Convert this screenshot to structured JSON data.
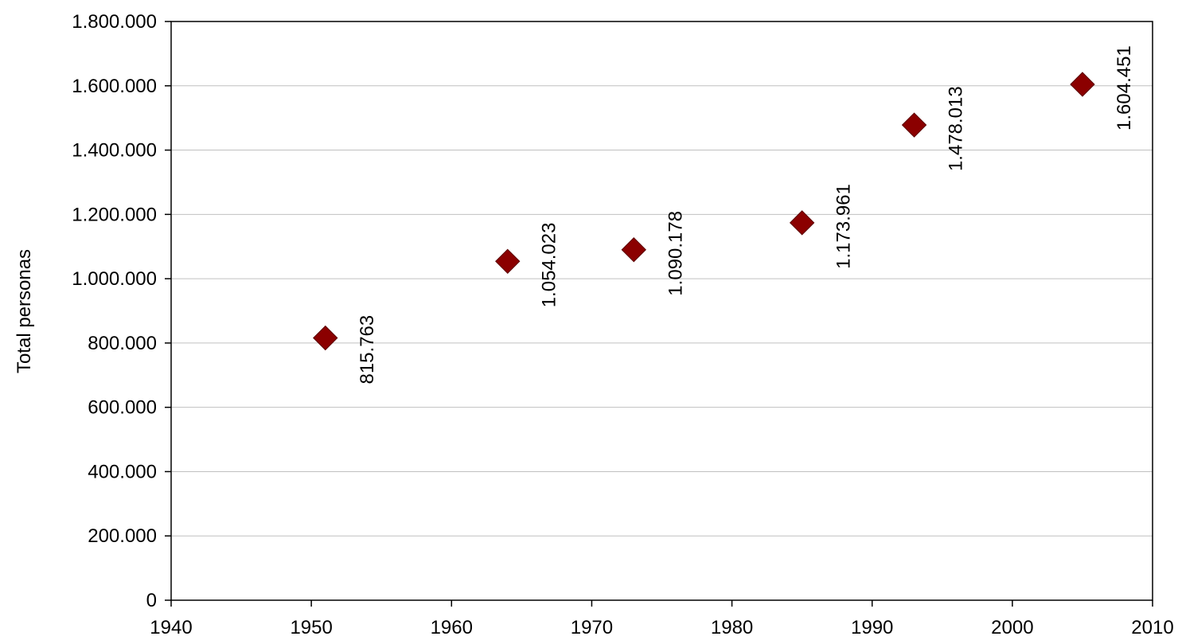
{
  "chart_data": {
    "type": "scatter",
    "title": "",
    "xlabel": "",
    "ylabel": "Total personas",
    "xlim": [
      1940,
      2010
    ],
    "ylim": [
      0,
      1800000
    ],
    "x_ticks": [
      1940,
      1950,
      1960,
      1970,
      1980,
      1990,
      2000,
      2010
    ],
    "y_ticks": [
      0,
      200000,
      400000,
      600000,
      800000,
      1000000,
      1200000,
      1400000,
      1600000,
      1800000
    ],
    "y_tick_labels": [
      "0",
      "200.000",
      "400.000",
      "600.000",
      "800.000",
      "1.000.000",
      "1.200.000",
      "1.400.000",
      "1.600.000",
      "1.800.000"
    ],
    "grid": "horizontal",
    "legend": "none",
    "marker": "diamond",
    "marker_color": "#8b0000",
    "series": [
      {
        "x": [
          1951,
          1964,
          1973,
          1985,
          1993,
          2005
        ],
        "values": [
          815763,
          1054023,
          1090178,
          1173961,
          1478013,
          1604451
        ],
        "labels": [
          "815.763",
          "1.054.023",
          "1.090.178",
          "1.173.961",
          "1.478.013",
          "1.604.451"
        ]
      }
    ]
  }
}
